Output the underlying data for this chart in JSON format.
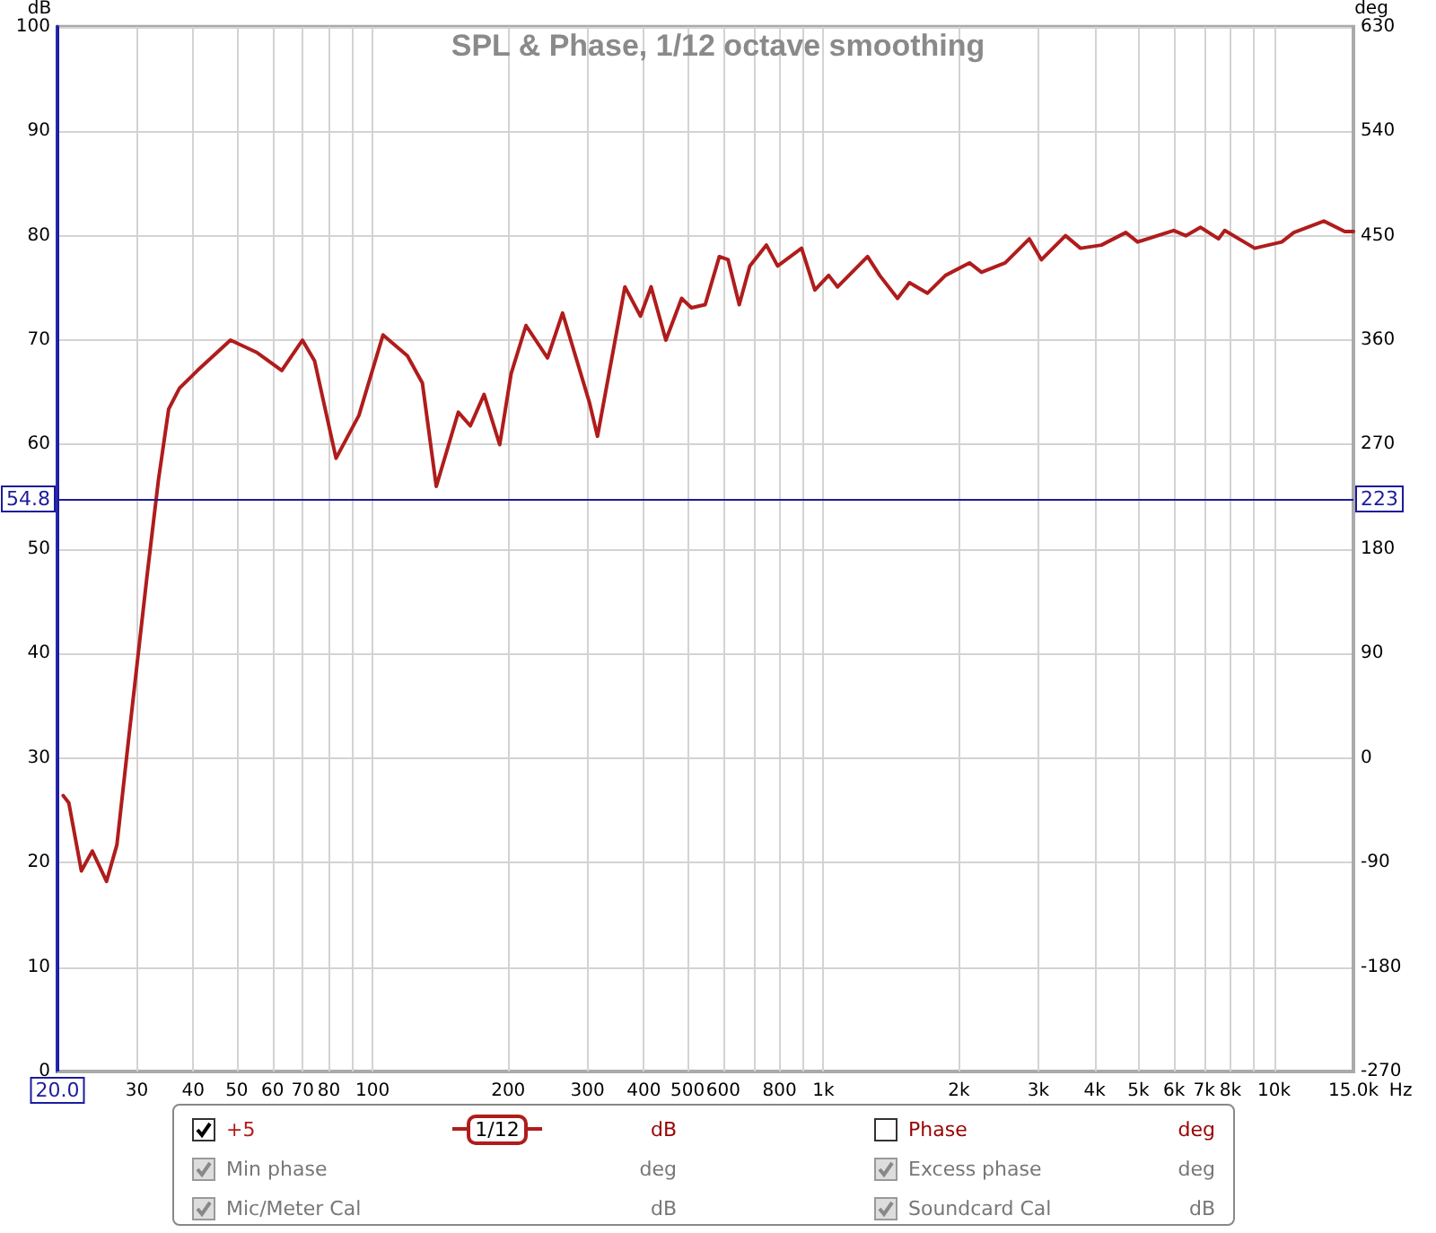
{
  "chart_data": {
    "type": "line",
    "title": "SPL & Phase, 1/12 octave smoothing",
    "xlabel": "Hz",
    "ylabel": "dB",
    "y2label": "deg",
    "log": "x",
    "xlim": [
      20,
      15000
    ],
    "xticks": [
      30,
      40,
      50,
      60,
      70,
      80,
      {
        "value": 90,
        "label": null
      },
      100,
      200,
      300,
      400,
      500,
      600,
      {
        "value": 700,
        "label": null
      },
      800,
      {
        "value": 900,
        "label": null
      },
      {
        "value": 1000,
        "label": "1k"
      },
      {
        "value": 2000,
        "label": "2k"
      },
      {
        "value": 3000,
        "label": "3k"
      },
      {
        "value": 4000,
        "label": "4k"
      },
      {
        "value": 5000,
        "label": "5k"
      },
      {
        "value": 6000,
        "label": "6k"
      },
      {
        "value": 7000,
        "label": "7k"
      },
      {
        "value": 8000,
        "label": "8k"
      },
      {
        "value": 9000,
        "label": null
      },
      {
        "value": 10000,
        "label": "10k"
      },
      {
        "value": 15000,
        "label": "15.0k"
      }
    ],
    "ylim": [
      0,
      100
    ],
    "yticks": [
      0,
      10,
      20,
      30,
      40,
      50,
      60,
      70,
      80,
      90,
      100
    ],
    "y2lim": [
      -270,
      630
    ],
    "y2ticks": [
      -270,
      -180,
      -90,
      0,
      90,
      180,
      270,
      360,
      450,
      540,
      630
    ],
    "grid": true,
    "legend": "bottom",
    "marker": "none",
    "line_style": "solid",
    "ref_lines": [
      {
        "axis": "y",
        "value": 54.8,
        "label": "54.8",
        "color": "#1c1c9c"
      },
      {
        "axis": "x",
        "value": 20,
        "label": "20.0",
        "color": "#1c1c9c"
      }
    ],
    "series": [
      {
        "name": "+5",
        "color": "#b01c1c",
        "x": [
          20.6,
          21.2,
          22.6,
          23.9,
          25.7,
          27.1,
          28.8,
          31.6,
          33.5,
          35.3,
          37.3,
          40.9,
          48.4,
          55.5,
          62.9,
          69.9,
          74.4,
          83,
          93.3,
          105.5,
          119.5,
          129,
          138.5,
          155,
          164.8,
          176.8,
          191.5,
          203,
          219,
          244.5,
          264,
          303,
          315.6,
          363,
          393,
          415,
          447.5,
          485,
          510,
          547,
          588,
          615,
          651,
          687,
          748,
          792,
          895,
          958,
          1028,
          1076,
          1254,
          1334,
          1461,
          1553,
          1703,
          1867,
          2110,
          2244,
          2533,
          2865,
          3048,
          3446,
          3720,
          4139,
          4690,
          4980,
          5990,
          6370,
          6870,
          7530,
          7770,
          9060,
          10400,
          11060,
          12900,
          14350,
          15000
        ],
        "values": [
          26.4,
          25.7,
          19.2,
          21.1,
          18.2,
          21.7,
          32.0,
          47.4,
          56.6,
          63.4,
          65.4,
          67.1,
          70.0,
          68.8,
          67.1,
          70.0,
          68.0,
          58.7,
          62.8,
          70.5,
          68.5,
          65.9,
          56.0,
          63.1,
          61.8,
          64.8,
          60.0,
          66.8,
          71.4,
          68.3,
          72.6,
          64.0,
          60.8,
          75.1,
          72.3,
          75.1,
          70.0,
          74.0,
          73.1,
          73.4,
          78.0,
          77.7,
          73.4,
          77.1,
          79.1,
          77.1,
          78.8,
          74.8,
          76.2,
          75.1,
          78.0,
          76.2,
          74.0,
          75.5,
          74.5,
          76.2,
          77.4,
          76.5,
          77.4,
          79.7,
          77.7,
          80.0,
          78.8,
          79.1,
          80.3,
          79.4,
          80.5,
          80.0,
          80.8,
          79.7,
          80.5,
          78.8,
          79.4,
          80.3,
          81.4,
          80.4,
          80.4
        ]
      }
    ],
    "annotations": [
      "1/12",
      "dB",
      "Phase",
      "deg",
      "Min phase",
      "deg",
      "Excess phase",
      "deg",
      "Mic/Meter Cal",
      "dB",
      "Soundcard Cal",
      "dB",
      {
        "text": "223",
        "y": 54.8
      }
    ]
  }
}
